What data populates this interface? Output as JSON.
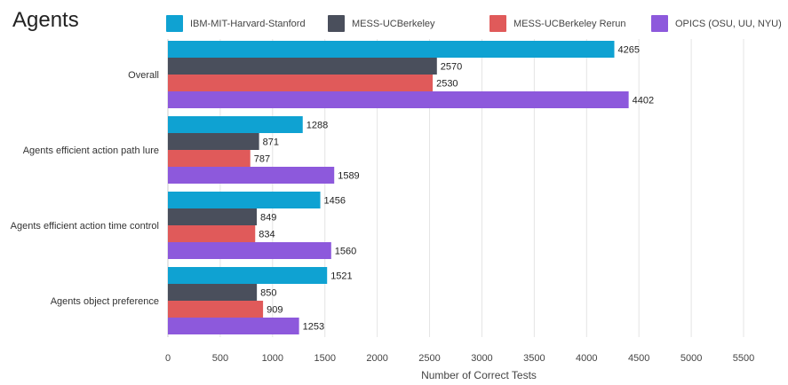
{
  "chart_data": {
    "type": "bar",
    "orientation": "horizontal",
    "title": "Agents",
    "xlabel": "Number of Correct Tests",
    "ylabel": "",
    "xlim": [
      0,
      5500
    ],
    "xticks": [
      0,
      500,
      1000,
      1500,
      2000,
      2500,
      3000,
      3500,
      4000,
      4500,
      5000,
      5500
    ],
    "grid": true,
    "legend_position": "top",
    "categories": [
      "Overall",
      "Agents efficient action path lure",
      "Agents efficient action time control",
      "Agents object preference"
    ],
    "series": [
      {
        "name": "IBM-MIT-Harvard-Stanford",
        "color": "#0fa2d2",
        "values": [
          4265,
          1288,
          1456,
          1521
        ]
      },
      {
        "name": "MESS-UCBerkeley",
        "color": "#4a4f5c",
        "values": [
          2570,
          871,
          849,
          850
        ]
      },
      {
        "name": "MESS-UCBerkeley Rerun",
        "color": "#e05a5a",
        "values": [
          2530,
          787,
          834,
          909
        ]
      },
      {
        "name": "OPICS (OSU, UU, NYU)",
        "color": "#8d59dc",
        "values": [
          4402,
          1589,
          1560,
          1253
        ]
      }
    ]
  }
}
